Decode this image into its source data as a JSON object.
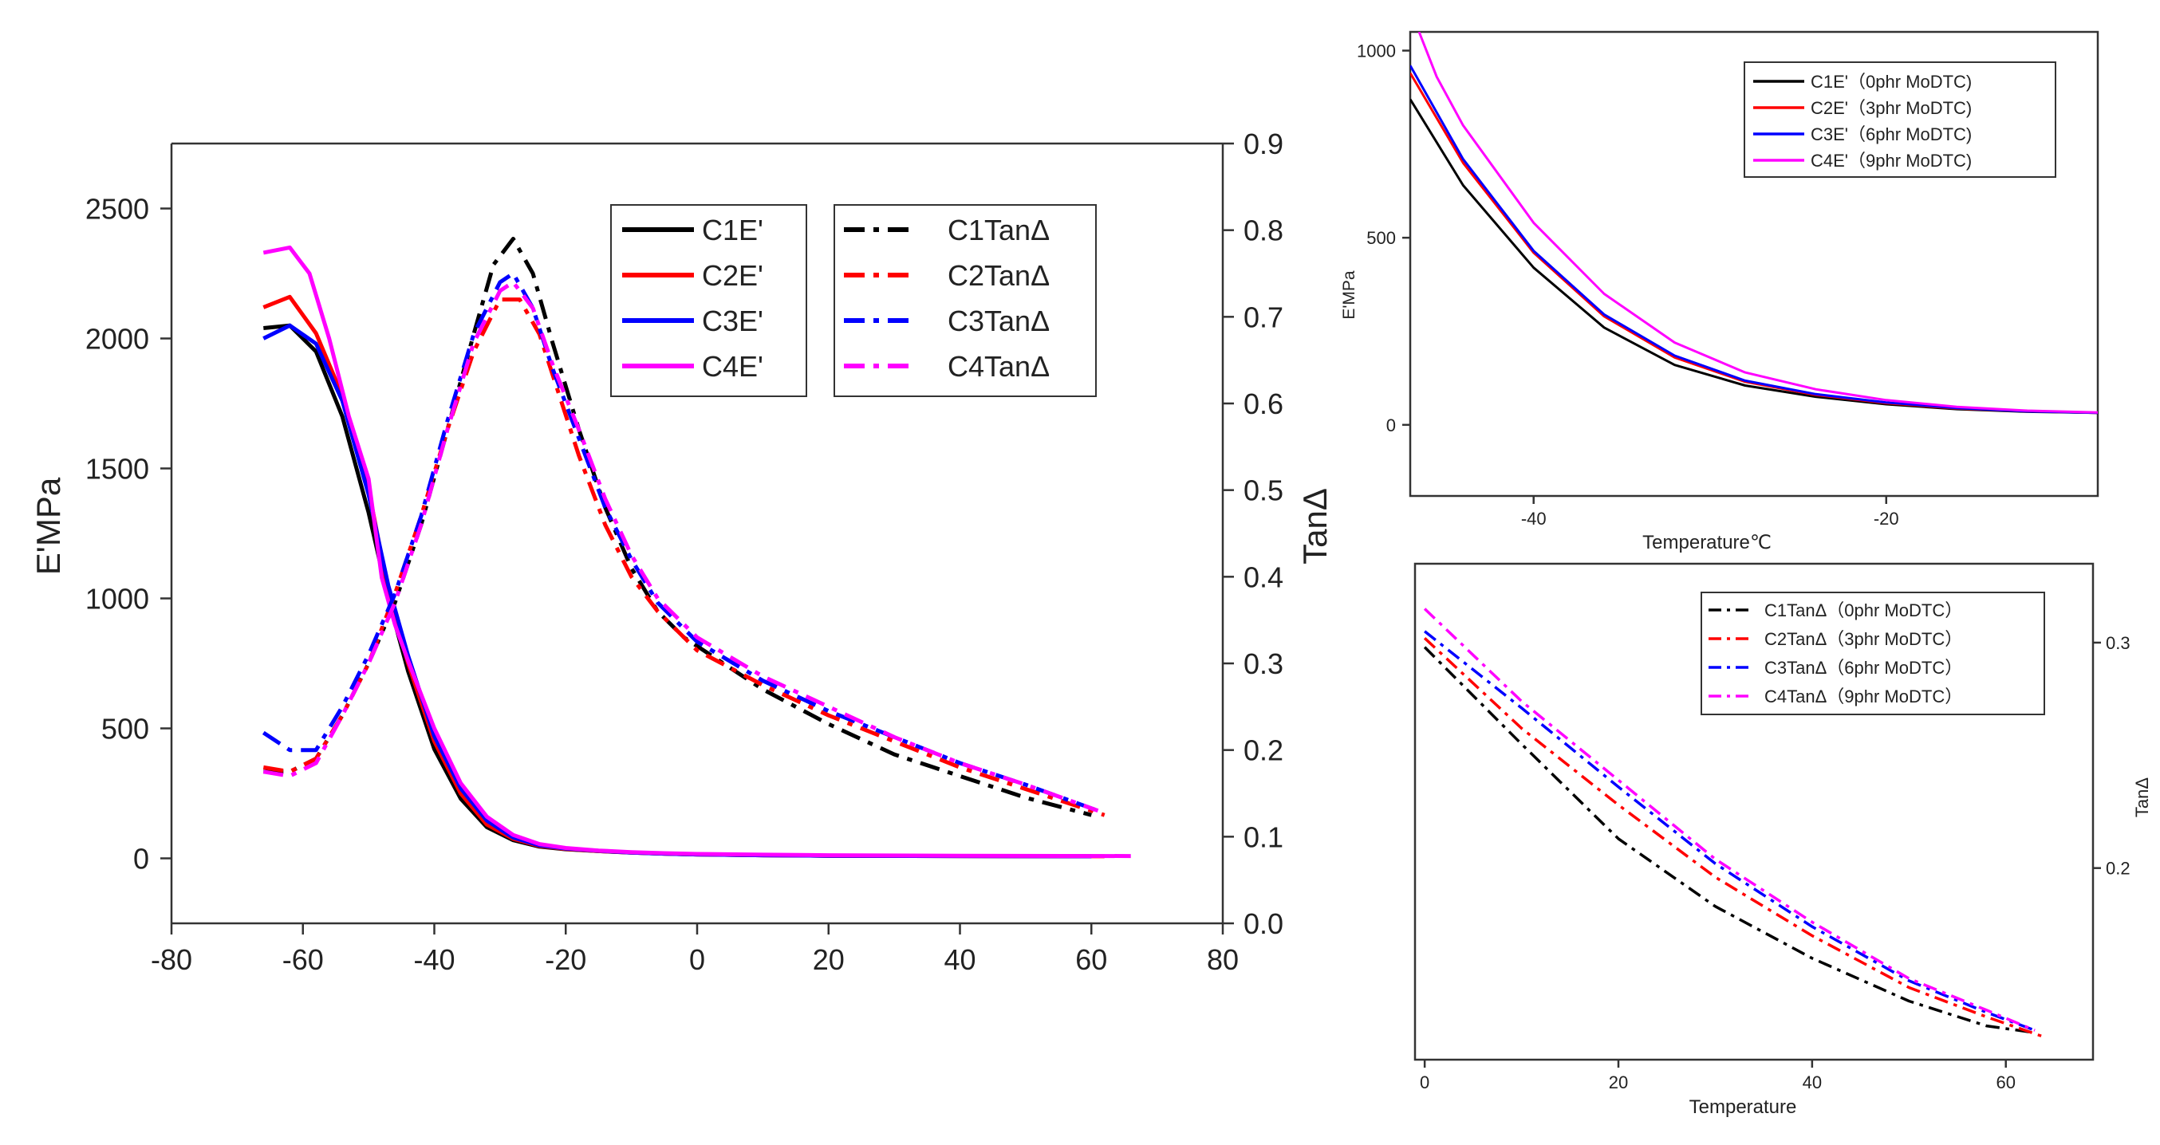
{
  "colors": {
    "C1": "#000000",
    "C2": "#ff0000",
    "C3": "#0000ff",
    "C4": "#ff00ff"
  },
  "chart_data": [
    {
      "type": "line",
      "title": "",
      "xlabel": "",
      "ylabel": "E'MPa",
      "y2label": "TanΔ",
      "xlim": [
        -80,
        80
      ],
      "ylim": [
        -250,
        2750
      ],
      "y2lim": [
        0.0,
        0.9
      ],
      "x_ticks": [
        "-80",
        "-60",
        "-40",
        "-20",
        "0",
        "20",
        "40",
        "60",
        "80"
      ],
      "y_ticks": [
        "0",
        "500",
        "1000",
        "1500",
        "2000",
        "2500"
      ],
      "y2_ticks": [
        "0.0",
        "0.1",
        "0.2",
        "0.3",
        "0.4",
        "0.5",
        "0.6",
        "0.7",
        "0.8",
        "0.9"
      ],
      "legend_left": [
        "C1E'",
        "C2E'",
        "C3E'",
        "C4E'"
      ],
      "legend_right": [
        "C1TanΔ",
        "C2TanΔ",
        "C3TanΔ",
        "C4TanΔ"
      ],
      "series": [
        {
          "name": "C1E'",
          "axis": "left",
          "style": "solid",
          "color_key": "C1",
          "x": [
            -66,
            -62,
            -58,
            -54,
            -50,
            -47,
            -44,
            -40,
            -36,
            -32,
            -28,
            -24,
            -20,
            -15,
            -10,
            -5,
            0,
            10,
            20,
            40,
            60
          ],
          "y": [
            2040,
            2050,
            1950,
            1700,
            1330,
            1000,
            720,
            420,
            230,
            120,
            70,
            45,
            35,
            28,
            22,
            18,
            15,
            12,
            10,
            9,
            8
          ]
        },
        {
          "name": "C2E'",
          "axis": "left",
          "style": "solid",
          "color_key": "C2",
          "x": [
            -66,
            -62,
            -58,
            -54,
            -50,
            -47,
            -44,
            -40,
            -36,
            -32,
            -28,
            -24,
            -20,
            -15,
            -10,
            -5,
            0,
            10,
            20,
            40,
            62
          ],
          "y": [
            2120,
            2160,
            2020,
            1780,
            1420,
            1030,
            750,
            450,
            250,
            130,
            75,
            48,
            36,
            28,
            22,
            18,
            15,
            12,
            10,
            9,
            8
          ]
        },
        {
          "name": "C3E'",
          "axis": "left",
          "style": "solid",
          "color_key": "C3",
          "x": [
            -66,
            -62,
            -58,
            -54,
            -50,
            -47,
            -44,
            -40,
            -36,
            -32,
            -28,
            -24,
            -20,
            -15,
            -10,
            -5,
            0,
            10,
            20,
            40,
            60
          ],
          "y": [
            2000,
            2050,
            1980,
            1760,
            1400,
            1050,
            780,
            470,
            270,
            145,
            80,
            50,
            38,
            29,
            22,
            18,
            15,
            12,
            10,
            9,
            8
          ]
        },
        {
          "name": "C4E'",
          "axis": "left",
          "style": "solid",
          "color_key": "C4",
          "x": [
            -66,
            -62,
            -59,
            -56,
            -53,
            -50,
            -48,
            -46,
            -44,
            -40,
            -36,
            -32,
            -28,
            -24,
            -20,
            -15,
            -10,
            -5,
            0,
            10,
            20,
            40,
            66
          ],
          "y": [
            2330,
            2350,
            2250,
            2000,
            1700,
            1460,
            1080,
            900,
            760,
            500,
            290,
            160,
            90,
            55,
            40,
            30,
            24,
            20,
            17,
            14,
            12,
            10,
            9
          ]
        },
        {
          "name": "C1TanΔ",
          "axis": "right",
          "style": "dashdot",
          "color_key": "C1",
          "x": [
            -66,
            -62,
            -58,
            -54,
            -50,
            -46,
            -42,
            -38,
            -34,
            -31,
            -28,
            -25,
            -22,
            -18,
            -14,
            -10,
            -6,
            -2,
            0,
            10,
            20,
            30,
            40,
            50,
            60
          ],
          "y": [
            0.175,
            0.175,
            0.19,
            0.24,
            0.3,
            0.37,
            0.46,
            0.57,
            0.68,
            0.76,
            0.79,
            0.75,
            0.67,
            0.57,
            0.48,
            0.41,
            0.36,
            0.33,
            0.32,
            0.27,
            0.23,
            0.195,
            0.17,
            0.145,
            0.125
          ]
        },
        {
          "name": "C2TanΔ",
          "axis": "right",
          "style": "dashdot",
          "color_key": "C2",
          "x": [
            -66,
            -62,
            -58,
            -54,
            -50,
            -46,
            -42,
            -38,
            -34,
            -30,
            -27,
            -24,
            -21,
            -18,
            -14,
            -10,
            -6,
            -2,
            0,
            10,
            20,
            30,
            40,
            50,
            62
          ],
          "y": [
            0.18,
            0.175,
            0.19,
            0.24,
            0.3,
            0.38,
            0.47,
            0.57,
            0.66,
            0.72,
            0.72,
            0.68,
            0.61,
            0.54,
            0.46,
            0.4,
            0.36,
            0.33,
            0.315,
            0.275,
            0.24,
            0.21,
            0.18,
            0.155,
            0.125
          ]
        },
        {
          "name": "C3TanΔ",
          "axis": "right",
          "style": "dashdot",
          "color_key": "C3",
          "x": [
            -66,
            -62,
            -58,
            -54,
            -50,
            -46,
            -42,
            -38,
            -34,
            -30,
            -28,
            -25,
            -22,
            -18,
            -14,
            -10,
            -6,
            -2,
            0,
            10,
            20,
            30,
            40,
            50,
            61
          ],
          "y": [
            0.22,
            0.2,
            0.2,
            0.25,
            0.31,
            0.38,
            0.47,
            0.58,
            0.68,
            0.74,
            0.75,
            0.71,
            0.64,
            0.56,
            0.48,
            0.42,
            0.37,
            0.34,
            0.325,
            0.28,
            0.245,
            0.215,
            0.185,
            0.16,
            0.13
          ]
        },
        {
          "name": "C4TanΔ",
          "axis": "right",
          "style": "dashdot",
          "color_key": "C4",
          "x": [
            -66,
            -62,
            -58,
            -54,
            -50,
            -46,
            -42,
            -38,
            -34,
            -30,
            -28,
            -25,
            -22,
            -18,
            -14,
            -10,
            -6,
            -2,
            0,
            10,
            20,
            30,
            40,
            50,
            61
          ],
          "y": [
            0.175,
            0.17,
            0.185,
            0.24,
            0.3,
            0.37,
            0.46,
            0.57,
            0.67,
            0.73,
            0.74,
            0.71,
            0.645,
            0.57,
            0.49,
            0.425,
            0.375,
            0.345,
            0.33,
            0.285,
            0.25,
            0.215,
            0.185,
            0.16,
            0.13
          ]
        }
      ]
    },
    {
      "type": "line",
      "title": "",
      "xlabel": "Temperature℃",
      "ylabel": "E'MPa",
      "xlim": [
        -47,
        -8
      ],
      "ylim": [
        -190,
        1050
      ],
      "x_ticks": [
        "-40",
        "-20"
      ],
      "y_ticks": [
        "0",
        "500",
        "1000"
      ],
      "legend": [
        "C1E'（0phr MoDTC)",
        "C2E'（3phr MoDTC)",
        "C3E'（6phr MoDTC)",
        "C4E'（9phr MoDTC)"
      ],
      "series": [
        {
          "name": "C1E'（0phr MoDTC)",
          "color_key": "C1",
          "style": "solid",
          "x": [
            -47,
            -44,
            -40,
            -36,
            -32,
            -28,
            -24,
            -20,
            -16,
            -12,
            -8
          ],
          "y": [
            870,
            640,
            420,
            260,
            160,
            105,
            75,
            55,
            42,
            35,
            32
          ]
        },
        {
          "name": "C2E'（3phr MoDTC)",
          "color_key": "C2",
          "style": "solid",
          "x": [
            -47,
            -44,
            -40,
            -36,
            -32,
            -28,
            -24,
            -20,
            -16,
            -12,
            -8
          ],
          "y": [
            940,
            700,
            460,
            290,
            180,
            115,
            80,
            58,
            44,
            36,
            32
          ]
        },
        {
          "name": "C3E'（6phr MoDTC)",
          "color_key": "C3",
          "style": "solid",
          "x": [
            -47,
            -44,
            -40,
            -36,
            -32,
            -28,
            -24,
            -20,
            -16,
            -12,
            -8
          ],
          "y": [
            960,
            710,
            465,
            295,
            185,
            118,
            82,
            60,
            45,
            36,
            32
          ]
        },
        {
          "name": "C4E'（9phr MoDTC)",
          "color_key": "C4",
          "style": "solid",
          "x": [
            -46.5,
            -45.5,
            -44,
            -40,
            -36,
            -32,
            -28,
            -24,
            -20,
            -16,
            -12,
            -8
          ],
          "y": [
            1050,
            930,
            800,
            540,
            350,
            220,
            140,
            95,
            66,
            48,
            38,
            33
          ]
        }
      ]
    },
    {
      "type": "line",
      "title": "",
      "xlabel": "Temperature",
      "ylabel": "TanΔ",
      "xlim": [
        -1,
        69
      ],
      "ylim": [
        0.115,
        0.335
      ],
      "x_ticks": [
        "0",
        "20",
        "40",
        "60"
      ],
      "y_ticks": [
        "0.2",
        "0.3"
      ],
      "legend": [
        "C1TanΔ（0phr MoDTC）",
        "C2TanΔ（3phr MoDTC）",
        "C3TanΔ（6phr MoDTC）",
        "C4TanΔ（9phr MoDTC）"
      ],
      "series": [
        {
          "name": "C1TanΔ（0phr MoDTC）",
          "color_key": "C1",
          "style": "dashdot",
          "x": [
            0,
            10,
            20,
            30,
            40,
            50,
            58,
            63
          ],
          "y": [
            0.298,
            0.255,
            0.213,
            0.183,
            0.16,
            0.141,
            0.13,
            0.127
          ]
        },
        {
          "name": "C2TanΔ（3phr MoDTC）",
          "color_key": "C2",
          "style": "dashdot",
          "x": [
            0,
            10,
            20,
            30,
            40,
            50,
            58,
            64
          ],
          "y": [
            0.302,
            0.262,
            0.228,
            0.196,
            0.17,
            0.147,
            0.134,
            0.125
          ]
        },
        {
          "name": "C3TanΔ（6phr MoDTC）",
          "color_key": "C3",
          "style": "dashdot",
          "x": [
            0,
            10,
            20,
            30,
            40,
            50,
            58,
            63
          ],
          "y": [
            0.305,
            0.271,
            0.236,
            0.202,
            0.174,
            0.15,
            0.136,
            0.128
          ]
        },
        {
          "name": "C4TanΔ（9phr MoDTC）",
          "color_key": "C4",
          "style": "dashdot",
          "x": [
            0,
            10,
            20,
            30,
            40,
            50,
            58,
            63
          ],
          "y": [
            0.315,
            0.274,
            0.239,
            0.204,
            0.176,
            0.151,
            0.137,
            0.128
          ]
        }
      ]
    }
  ]
}
